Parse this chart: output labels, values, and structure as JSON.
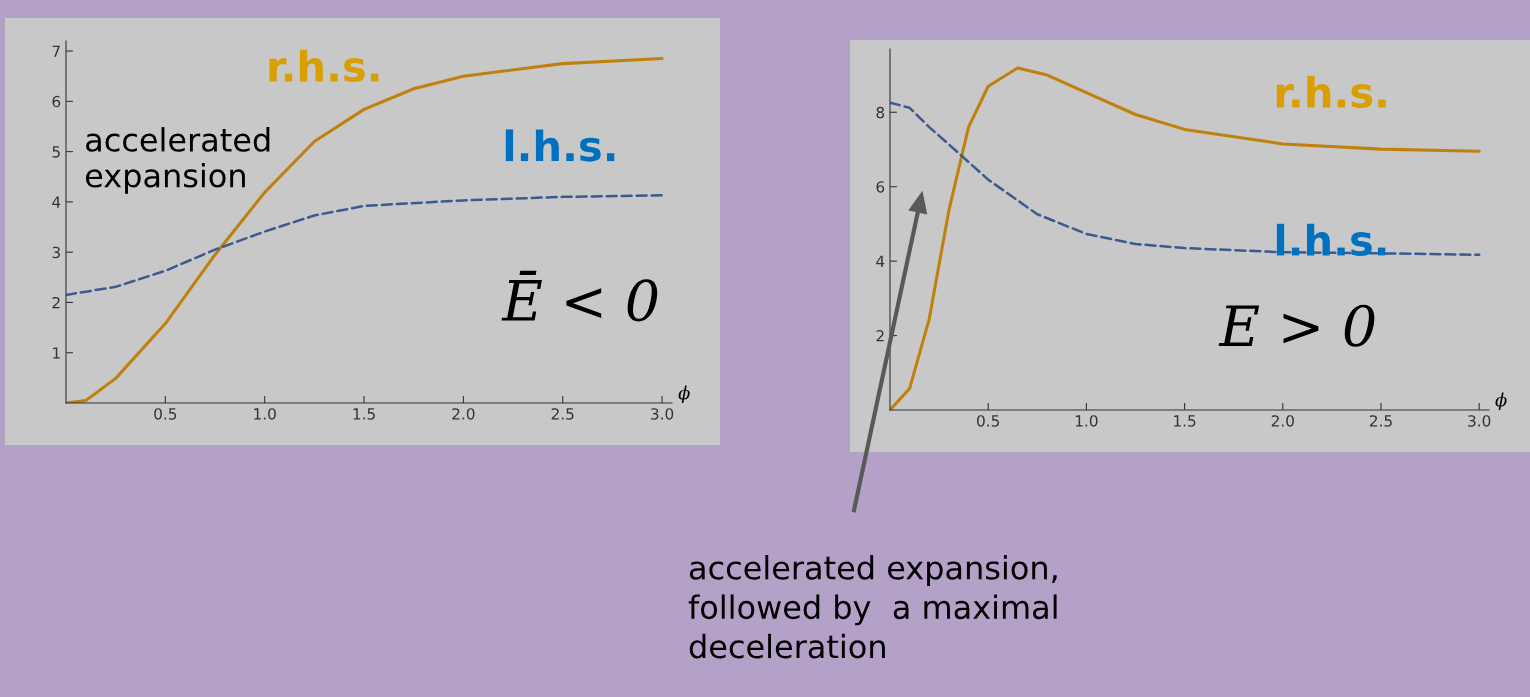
{
  "chart_data": [
    {
      "type": "line",
      "xlabel": "ϕ",
      "xlim": [
        0,
        3.05
      ],
      "ylim": [
        0,
        7.2
      ],
      "xticks": [
        {
          "value": 0.5,
          "label": "0.5"
        },
        {
          "value": 1.0,
          "label": "1.0"
        },
        {
          "value": 1.5,
          "label": "1.5"
        },
        {
          "value": 2.0,
          "label": "2.0"
        },
        {
          "value": 2.5,
          "label": "2.5"
        },
        {
          "value": 3.0,
          "label": "3.0"
        }
      ],
      "yticks": [
        1,
        2,
        3,
        4,
        5,
        6,
        7
      ],
      "series": [
        {
          "name": "r.h.s.",
          "color": "#c0800e",
          "line_style": "solid",
          "x": [
            0,
            0.1,
            0.25,
            0.5,
            0.75,
            1.0,
            1.25,
            1.5,
            1.75,
            2.0,
            2.5,
            3.0
          ],
          "values": [
            0,
            0.05,
            0.49,
            1.58,
            2.95,
            4.19,
            5.2,
            5.84,
            6.25,
            6.5,
            6.75,
            6.85
          ]
        },
        {
          "name": "l.h.s.",
          "color": "#3a5a90",
          "line_style": "dashed",
          "x": [
            0,
            0.25,
            0.5,
            0.75,
            1.0,
            1.25,
            1.5,
            2.0,
            2.5,
            3.0
          ],
          "values": [
            2.15,
            2.31,
            2.63,
            3.05,
            3.41,
            3.73,
            3.92,
            4.03,
            4.1,
            4.13
          ]
        }
      ],
      "annotations": [
        "accelerated\nexpansion",
        "Ē < 0"
      ]
    },
    {
      "type": "line",
      "xlabel": "ϕ",
      "xlim": [
        0,
        3.05
      ],
      "ylim": [
        0,
        9.7
      ],
      "xticks": [
        {
          "value": 0.5,
          "label": "0.5"
        },
        {
          "value": 1.0,
          "label": "1.0"
        },
        {
          "value": 1.5,
          "label": "1.5"
        },
        {
          "value": 2.0,
          "label": "2.0"
        },
        {
          "value": 2.5,
          "label": "2.5"
        },
        {
          "value": 3.0,
          "label": "3.0"
        }
      ],
      "yticks": [
        2,
        4,
        6,
        8
      ],
      "series": [
        {
          "name": "r.h.s.",
          "color": "#c0800e",
          "line_style": "solid",
          "x": [
            0,
            0.1,
            0.2,
            0.3,
            0.4,
            0.5,
            0.65,
            0.8,
            1.0,
            1.25,
            1.5,
            2.0,
            2.5,
            3.0
          ],
          "values": [
            0,
            0.58,
            2.45,
            5.37,
            7.6,
            8.7,
            9.19,
            9.0,
            8.53,
            7.94,
            7.54,
            7.15,
            7.01,
            6.95
          ]
        },
        {
          "name": "l.h.s.",
          "color": "#3a5a90",
          "line_style": "dashed",
          "x": [
            0,
            0.1,
            0.2,
            0.35,
            0.5,
            0.75,
            1.0,
            1.25,
            1.5,
            2.0,
            2.5,
            3.0
          ],
          "values": [
            8.26,
            8.12,
            7.6,
            6.9,
            6.19,
            5.26,
            4.73,
            4.46,
            4.35,
            4.24,
            4.21,
            4.17
          ]
        }
      ],
      "annotations": [
        "E > 0",
        "accelerated expansion,\nfollowed by  a maximal\ndeceleration"
      ]
    }
  ]
}
